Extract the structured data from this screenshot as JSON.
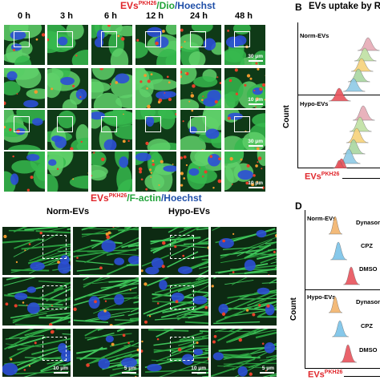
{
  "panelA": {
    "title_part1": "EVs",
    "title_sup": "PKH26",
    "title_part2": "/Dio",
    "title_part3": "/Hoechst",
    "time_labels": [
      "0 h",
      "3 h",
      "6 h",
      "12 h",
      "24 h",
      "48 h"
    ],
    "scale_30": "30 μm",
    "scale_10": "10 μm",
    "colors": {
      "membrane": "#2fb347",
      "evs": "#e8412a",
      "nuclei": "#2c4fd6"
    }
  },
  "panelB": {
    "letter": "B",
    "title": "EVs uptake by ROI",
    "group1": "Norm-EVs",
    "group2": "Hypo-EVs",
    "ylabel": "Count",
    "xlabel_part1": "EVs",
    "xlabel_sup": "PKH26",
    "curve_colors": [
      "#e6aab5",
      "#bfe0a3",
      "#f7d27a",
      "#a9d6a0",
      "#8ecae6",
      "#e8535b"
    ]
  },
  "panelC": {
    "title_part1": "EVs",
    "title_sup": "PKH26",
    "title_part2": "/F-actin",
    "title_part3": "/Hoechst",
    "group1": "Norm-EVs",
    "group2": "Hypo-EVs",
    "scale_10": "10 μm",
    "scale_5": "5 μm"
  },
  "panelD": {
    "letter": "D",
    "group1": "Norm-EVs",
    "group2": "Hypo-EVs",
    "treatments": [
      "Dynasore",
      "CPZ",
      "DMSO"
    ],
    "ylabel": "Count",
    "xlabel_part1": "EVs",
    "xlabel_sup": "PKH26",
    "curve_colors": [
      "#f2b36b",
      "#79c3e8",
      "#e8535b"
    ]
  }
}
